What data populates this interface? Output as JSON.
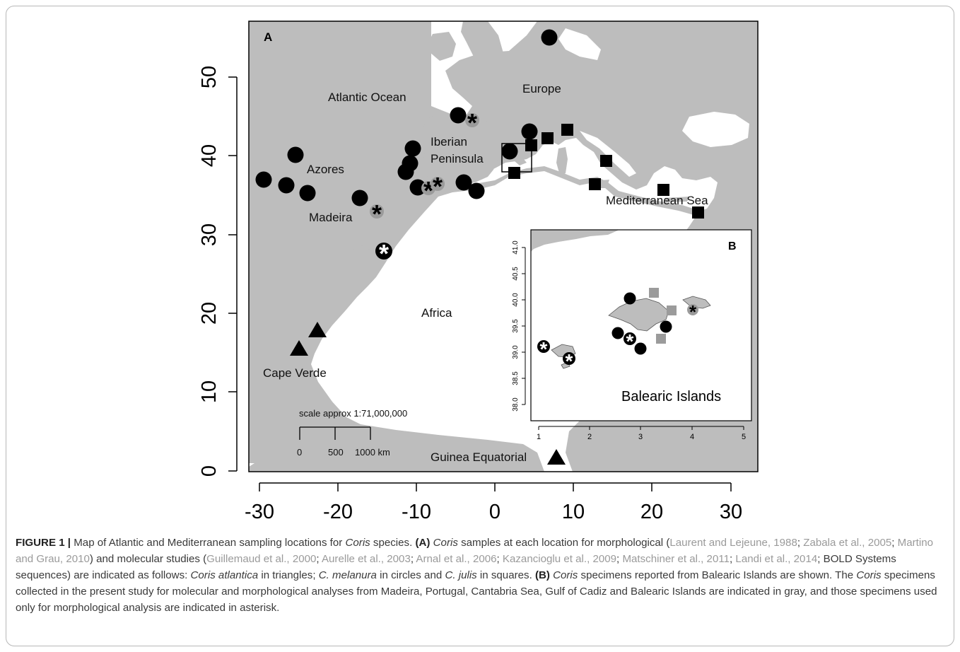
{
  "panel_a": {
    "label": "A",
    "x_ticks": [
      "-30",
      "-20",
      "-10",
      "0",
      "10",
      "20",
      "30"
    ],
    "y_ticks": [
      "0",
      "10",
      "20",
      "30",
      "40",
      "50"
    ],
    "places": {
      "atlantic": "Atlantic Ocean",
      "europe": "Europe",
      "iberian1": "Iberian",
      "iberian2": "Peninsula",
      "azores": "Azores",
      "madeira": "Madeira",
      "mediterranean": "Mediterranean Sea",
      "africa": "Africa",
      "cape_verde": "Cape Verde",
      "guinea": "Guinea Equatorial"
    },
    "scale": {
      "title": "scale approx 1:71,000,000",
      "t0": "0",
      "t1": "500",
      "t2": "1000 km"
    }
  },
  "panel_b": {
    "label": "B",
    "x_ticks": [
      "1",
      "2",
      "3",
      "4",
      "5"
    ],
    "y_ticks": [
      "38.0",
      "38.5",
      "39.0",
      "39.5",
      "40.0",
      "40.5",
      "41.0"
    ],
    "title": "Balearic Islands"
  },
  "legend_semantics": {
    "triangle": "Coris atlantica",
    "circle": "C. melanura",
    "square": "C. julis",
    "gray": "collected in present study",
    "asterisk": "morphological analysis only"
  },
  "colors": {
    "land": "#bdbdbd",
    "marker": "#000000",
    "marker_gray": "#9b9b9b",
    "frame": "#b7b7b7"
  },
  "caption": {
    "label": "FIGURE 1 |",
    "t1": " Map of Atlantic and Mediterranean sampling locations for ",
    "coris1": "Coris",
    "t2": " species. ",
    "a_label": "(A)",
    "coris2": " Coris",
    "t3": " samples at each location for morphological (",
    "c1": "Laurent and Lejeune, 1988",
    "t4": "; ",
    "c2": "Zabala et al., 2005",
    "t5": "; ",
    "c3": "Martino and Grau, 2010",
    "t6": ") and molecular studies (",
    "c4": "Guillemaud et al., 2000",
    "t7": "; ",
    "c5": "Aurelle et al., 2003",
    "t8": "; ",
    "c6": "Arnal et al., 2006",
    "t9": "; ",
    "c7": "Kazancioglu et al., 2009",
    "t10": "; ",
    "c8": "Matschiner et al., 2011",
    "t11": "; ",
    "c9": "Landi et al., 2014",
    "t12": "; BOLD Systems sequences) are indicated as follows: ",
    "sp1": "Coris atlantica",
    "t13": " in triangles; ",
    "sp2": "C. melanura",
    "t14": " in circles and ",
    "sp3": "C. julis",
    "t15": " in squares. ",
    "b_label": "(B)",
    "coris3": " Coris",
    "t16": " specimens reported from Balearic Islands are shown. The ",
    "coris4": "Coris",
    "t17": " specimens collected in the present study for molecular and morphological analyses from Madeira, Portugal, Cantabria Sea, Gulf of Cadiz and Balearic Islands are indicated in gray, and those specimens used only for morphological analysis are indicated in asterisk."
  }
}
